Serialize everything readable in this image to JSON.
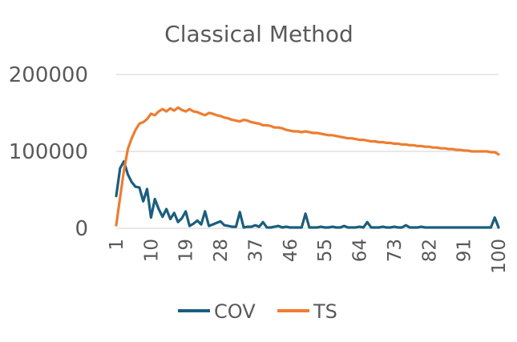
{
  "chart_data": {
    "type": "line",
    "title": "Classical Method",
    "xlabel": "",
    "ylabel": "",
    "x_tick_labels": [
      "1",
      "10",
      "19",
      "28",
      "37",
      "46",
      "55",
      "64",
      "73",
      "82",
      "91",
      "100"
    ],
    "y_tick_labels": [
      "0",
      "100000",
      "200000"
    ],
    "ylim": [
      0,
      200000
    ],
    "xlim": [
      1,
      100
    ],
    "grid": "horizontal",
    "legend_position": "bottom",
    "series": [
      {
        "name": "COV",
        "color": "#1a5e7e",
        "x": [
          1,
          2,
          3,
          4,
          5,
          6,
          7,
          8,
          9,
          10,
          11,
          12,
          13,
          14,
          15,
          16,
          17,
          18,
          19,
          20,
          21,
          22,
          23,
          24,
          25,
          26,
          27,
          28,
          29,
          30,
          31,
          32,
          33,
          34,
          35,
          36,
          37,
          38,
          39,
          40,
          41,
          42,
          43,
          44,
          45,
          46,
          47,
          48,
          49,
          50,
          51,
          52,
          53,
          54,
          55,
          56,
          57,
          58,
          59,
          60,
          61,
          62,
          63,
          64,
          65,
          66,
          67,
          68,
          69,
          70,
          71,
          72,
          73,
          74,
          75,
          76,
          77,
          78,
          79,
          80,
          81,
          82,
          83,
          84,
          85,
          86,
          87,
          88,
          89,
          90,
          91,
          92,
          93,
          94,
          95,
          96,
          97,
          98,
          99,
          100
        ],
        "values": [
          42000,
          78000,
          87000,
          70000,
          60000,
          54000,
          53000,
          35000,
          51000,
          14000,
          38000,
          25000,
          15000,
          25000,
          12000,
          20000,
          8000,
          13000,
          22000,
          3000,
          6000,
          10000,
          5000,
          22000,
          3000,
          5000,
          7000,
          9000,
          4000,
          3000,
          2000,
          2000,
          21000,
          1000,
          2000,
          2000,
          4000,
          2000,
          8000,
          1000,
          1000,
          2000,
          3000,
          1000,
          2000,
          1000,
          1000,
          1000,
          1000,
          19000,
          1000,
          1000,
          1000,
          2000,
          1000,
          1000,
          2000,
          1000,
          1000,
          3000,
          1000,
          1000,
          1000,
          2000,
          1000,
          8000,
          1000,
          1000,
          1000,
          2000,
          1000,
          1000,
          2000,
          1000,
          1000,
          4000,
          1000,
          1000,
          1000,
          2000,
          1000,
          1000,
          1000,
          1000,
          1000,
          1000,
          1000,
          1000,
          1000,
          1000,
          1000,
          1000,
          1000,
          1000,
          1000,
          1000,
          1000,
          1000,
          14000,
          1000
        ]
      },
      {
        "name": "TS",
        "color": "#ed7d31",
        "x": [
          1,
          2,
          3,
          4,
          5,
          6,
          7,
          8,
          9,
          10,
          11,
          12,
          13,
          14,
          15,
          16,
          17,
          18,
          19,
          20,
          21,
          22,
          23,
          24,
          25,
          26,
          27,
          28,
          29,
          30,
          31,
          32,
          33,
          34,
          35,
          36,
          37,
          38,
          39,
          40,
          41,
          42,
          43,
          44,
          45,
          46,
          47,
          48,
          49,
          50,
          51,
          52,
          53,
          54,
          55,
          56,
          57,
          58,
          59,
          60,
          61,
          62,
          63,
          64,
          65,
          66,
          67,
          68,
          69,
          70,
          71,
          72,
          73,
          74,
          75,
          76,
          77,
          78,
          79,
          80,
          81,
          82,
          83,
          84,
          85,
          86,
          87,
          88,
          89,
          90,
          91,
          92,
          93,
          94,
          95,
          96,
          97,
          98,
          99,
          100
        ],
        "values": [
          4000,
          40000,
          75000,
          103000,
          117000,
          128000,
          136000,
          138000,
          142000,
          149000,
          147000,
          152000,
          155000,
          152000,
          156000,
          153000,
          157000,
          154000,
          152000,
          155000,
          152000,
          151000,
          149000,
          147000,
          150000,
          149000,
          147000,
          146000,
          144000,
          143000,
          141000,
          140000,
          139000,
          141000,
          140000,
          138000,
          137000,
          136000,
          134000,
          134000,
          133000,
          131000,
          131000,
          130000,
          128000,
          127000,
          126000,
          126000,
          125000,
          126000,
          125000,
          124000,
          124000,
          123000,
          122000,
          121000,
          121000,
          120000,
          119000,
          118000,
          117000,
          117000,
          116000,
          115000,
          115000,
          114000,
          113000,
          113000,
          112000,
          112000,
          111000,
          111000,
          110000,
          110000,
          109000,
          109000,
          108000,
          108000,
          107000,
          107000,
          106000,
          106000,
          105000,
          105000,
          104000,
          104000,
          103000,
          103000,
          102000,
          102000,
          101000,
          101000,
          100000,
          100000,
          100000,
          100000,
          100000,
          99000,
          99000,
          96000
        ]
      }
    ]
  }
}
